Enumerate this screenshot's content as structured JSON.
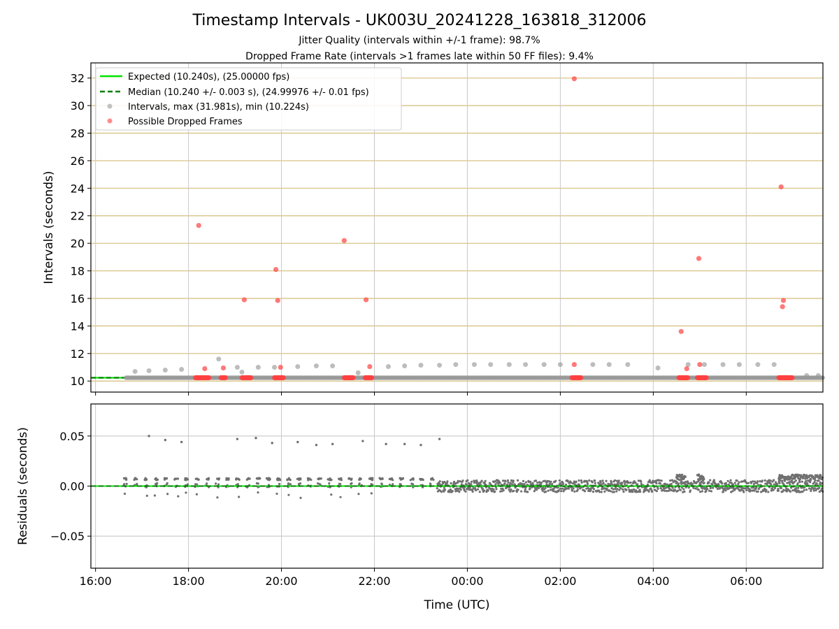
{
  "chart_data": {
    "type": "scatter",
    "title": "Timestamp Intervals - UK003U_20241228_163818_312006",
    "subtitle_lines": [
      "Jitter Quality (intervals within +/-1 frame): 98.7%",
      "Dropped Frame Rate (intervals >1 frames late within 50 FF files): 9.4%"
    ],
    "xlabel": "Time (UTC)",
    "x_tick_labels": [
      "16:00",
      "18:00",
      "20:00",
      "22:00",
      "00:00",
      "02:00",
      "04:00",
      "06:00"
    ],
    "x_ticks_hours": [
      16,
      18,
      20,
      22,
      24,
      26,
      28,
      30
    ],
    "x_range_hours": [
      15.9,
      31.65
    ],
    "top": {
      "ylabel": "Intervals (seconds)",
      "ylim": [
        9.2,
        33.1
      ],
      "yticks": [
        10,
        12,
        14,
        16,
        18,
        20,
        22,
        24,
        26,
        28,
        30,
        32
      ],
      "grid": true,
      "legend_position": "upper-left",
      "legend": [
        "Expected (10.240s), (25.00000 fps)",
        "Median (10.240 +/- 0.003 s), (24.99976 +/- 0.01 fps)",
        "Intervals, max (31.981s), min (10.224s)",
        "Possible Dropped Frames"
      ],
      "expected_interval": 10.24,
      "median_interval": 10.24,
      "intervals_baseline": {
        "x_start": 16.65,
        "x_end": 31.65,
        "value": 10.24
      },
      "intervals_periodic": [
        [
          16.85,
          10.7
        ],
        [
          17.15,
          10.75
        ],
        [
          17.5,
          10.8
        ],
        [
          17.85,
          10.85
        ],
        [
          18.65,
          11.6
        ],
        [
          19.05,
          11.0
        ],
        [
          19.15,
          10.65
        ],
        [
          19.5,
          11.0
        ],
        [
          19.85,
          11.0
        ],
        [
          20.35,
          11.05
        ],
        [
          20.75,
          11.1
        ],
        [
          21.1,
          11.1
        ],
        [
          21.65,
          10.6
        ],
        [
          22.3,
          11.05
        ],
        [
          22.65,
          11.1
        ],
        [
          23.0,
          11.15
        ],
        [
          23.4,
          11.15
        ],
        [
          23.75,
          11.2
        ],
        [
          24.15,
          11.2
        ],
        [
          24.5,
          11.2
        ],
        [
          24.9,
          11.2
        ],
        [
          25.25,
          11.2
        ],
        [
          25.65,
          11.2
        ],
        [
          26.0,
          11.2
        ],
        [
          26.7,
          11.2
        ],
        [
          27.05,
          11.2
        ],
        [
          27.45,
          11.2
        ],
        [
          28.1,
          10.95
        ],
        [
          28.75,
          11.2
        ],
        [
          29.1,
          11.2
        ],
        [
          29.5,
          11.2
        ],
        [
          29.85,
          11.2
        ],
        [
          30.25,
          11.2
        ],
        [
          30.6,
          11.2
        ],
        [
          31.3,
          10.4
        ],
        [
          31.55,
          10.4
        ]
      ],
      "dropped_frames": [
        [
          18.22,
          21.3
        ],
        [
          18.35,
          10.9
        ],
        [
          18.75,
          10.95
        ],
        [
          19.2,
          15.9
        ],
        [
          19.88,
          18.1
        ],
        [
          19.92,
          15.85
        ],
        [
          19.98,
          11.0
        ],
        [
          21.35,
          20.2
        ],
        [
          21.82,
          15.9
        ],
        [
          21.9,
          11.05
        ],
        [
          26.3,
          11.2
        ],
        [
          26.3,
          31.95
        ],
        [
          28.6,
          13.6
        ],
        [
          28.72,
          10.9
        ],
        [
          28.98,
          18.9
        ],
        [
          29.0,
          11.2
        ],
        [
          30.75,
          24.1
        ],
        [
          30.78,
          15.4
        ],
        [
          30.8,
          15.85
        ]
      ],
      "dropped_clusters": [
        [
          18.15,
          18.45
        ],
        [
          18.7,
          18.8
        ],
        [
          19.15,
          19.35
        ],
        [
          19.85,
          20.05
        ],
        [
          21.35,
          21.55
        ],
        [
          21.8,
          21.95
        ],
        [
          26.25,
          26.45
        ],
        [
          28.55,
          28.75
        ],
        [
          28.95,
          29.15
        ],
        [
          30.7,
          31.0
        ]
      ],
      "dropped_cluster_value": 10.24
    },
    "bottom": {
      "ylabel": "Residuals (seconds)",
      "ylim": [
        -0.082,
        0.082
      ],
      "yticks": [
        0.05,
        0.0,
        -0.05
      ],
      "ytick_labels": [
        "0.05",
        "0.00",
        "−0.05"
      ],
      "grid": true,
      "expected_residual": 0.0,
      "outlier_residuals": [
        [
          17.15,
          0.05
        ],
        [
          17.5,
          0.046
        ],
        [
          17.85,
          0.044
        ],
        [
          19.05,
          0.047
        ],
        [
          19.45,
          0.048
        ],
        [
          19.8,
          0.043
        ],
        [
          20.35,
          0.044
        ],
        [
          20.75,
          0.041
        ],
        [
          21.1,
          0.042
        ],
        [
          21.75,
          0.045
        ],
        [
          22.25,
          0.042
        ],
        [
          22.65,
          0.042
        ],
        [
          23.0,
          0.041
        ],
        [
          23.4,
          0.047
        ]
      ],
      "sparse_segment": {
        "x_start": 16.6,
        "x_end": 23.35,
        "cluster_spacing": 0.22,
        "high": 0.007,
        "mid": 0.0,
        "low": -0.006
      },
      "dense_segment": {
        "x_start": 23.35,
        "x_end": 31.65,
        "spread": 0.006
      },
      "raised_segments": [
        {
          "x_start": 28.5,
          "x_end": 28.7,
          "value": 0.009
        },
        {
          "x_start": 28.95,
          "x_end": 29.1,
          "value": 0.009
        },
        {
          "x_start": 30.7,
          "x_end": 31.65,
          "value": 0.009
        }
      ]
    },
    "colors": {
      "expected": "#00e400",
      "median": "#007f00",
      "intervals": "#999999",
      "dropped": "#ff4040",
      "residuals": "#707070",
      "hgrid_top": "#d4be7a",
      "vgrid": "#c8c8c8",
      "hgrid_bottom": "#c0c0c0"
    }
  }
}
